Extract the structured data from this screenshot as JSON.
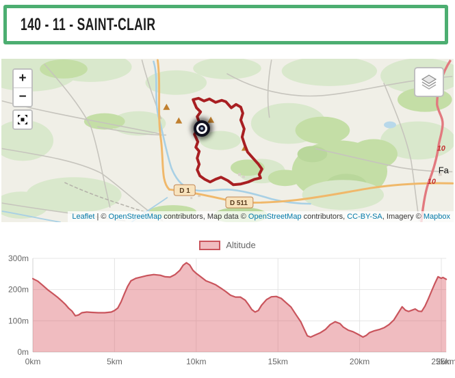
{
  "header": {
    "title": "140 - 11 - SAINT-CLAIR"
  },
  "map": {
    "zoom_in_label": "+",
    "zoom_out_label": "−",
    "road_labels": {
      "d1": "D 1",
      "d511": "D 511"
    },
    "shield_10": "10",
    "city_fragment": "Fa",
    "attribution": {
      "leaflet": "Leaflet",
      "sep": " | © ",
      "osm1": "OpenStreetMap",
      "mid1": " contributors, Map data © ",
      "osm2": "OpenStreetMap",
      "mid2": " contributors, ",
      "cc": "CC-BY-SA",
      "mid3": ", Imagery © ",
      "mapbox": "Mapbox"
    }
  },
  "chart_data": {
    "type": "area",
    "title": "",
    "legend_label": "Altitude",
    "grid": true,
    "legend_position": "top-center",
    "xlim": [
      0,
      25.3
    ],
    "ylim": [
      0,
      300
    ],
    "xmax": 25.3,
    "x_ticks": [
      {
        "v": 0,
        "label": "0km"
      },
      {
        "v": 5,
        "label": "5km"
      },
      {
        "v": 10,
        "label": "10km"
      },
      {
        "v": 15,
        "label": "15km"
      },
      {
        "v": 20,
        "label": "20km"
      },
      {
        "v": 25,
        "label": "25km"
      }
    ],
    "end_label": "25km",
    "y_ticks": [
      {
        "v": 0,
        "label": "0m"
      },
      {
        "v": 100,
        "label": "100m"
      },
      {
        "v": 200,
        "label": "200m"
      },
      {
        "v": 300,
        "label": "300m"
      }
    ],
    "colors": {
      "line": "#c9545c",
      "fill": "rgba(219,95,104,0.42)"
    },
    "series": [
      {
        "name": "Altitude",
        "x": [
          0,
          0.3,
          0.6,
          0.9,
          1.2,
          1.5,
          1.8,
          2.0,
          2.2,
          2.4,
          2.6,
          2.8,
          3.0,
          3.3,
          3.6,
          4.0,
          4.4,
          4.8,
          5.0,
          5.2,
          5.4,
          5.6,
          5.8,
          6.0,
          6.3,
          6.6,
          7.0,
          7.4,
          7.8,
          8.1,
          8.4,
          8.7,
          9.0,
          9.2,
          9.4,
          9.6,
          9.8,
          10.0,
          10.3,
          10.6,
          10.9,
          11.2,
          11.5,
          11.8,
          12.1,
          12.4,
          12.7,
          13.0,
          13.2,
          13.4,
          13.6,
          13.8,
          14.0,
          14.3,
          14.6,
          14.9,
          15.2,
          15.5,
          15.8,
          16.1,
          16.4,
          16.6,
          16.8,
          17.0,
          17.3,
          17.6,
          17.9,
          18.2,
          18.5,
          18.8,
          19.0,
          19.3,
          19.6,
          19.9,
          20.2,
          20.4,
          20.6,
          20.9,
          21.2,
          21.5,
          21.8,
          22.1,
          22.4,
          22.6,
          22.8,
          23.0,
          23.2,
          23.4,
          23.6,
          23.8,
          24.0,
          24.2,
          24.4,
          24.6,
          24.8,
          25.0,
          25.1,
          25.3
        ],
        "y": [
          235,
          227,
          214,
          200,
          188,
          176,
          162,
          152,
          140,
          131,
          116,
          119,
          126,
          128,
          127,
          126,
          126,
          128,
          133,
          141,
          161,
          186,
          210,
          228,
          236,
          240,
          245,
          248,
          246,
          241,
          240,
          248,
          262,
          278,
          286,
          279,
          262,
          252,
          240,
          228,
          222,
          215,
          205,
          194,
          182,
          176,
          176,
          166,
          152,
          136,
          128,
          133,
          150,
          168,
          177,
          178,
          172,
          158,
          144,
          120,
          97,
          74,
          52,
          48,
          55,
          62,
          72,
          88,
          97,
          91,
          80,
          70,
          65,
          57,
          48,
          53,
          62,
          68,
          72,
          78,
          88,
          103,
          128,
          145,
          134,
          130,
          134,
          138,
          131,
          130,
          147,
          170,
          195,
          219,
          241,
          236,
          239,
          233
        ]
      }
    ]
  }
}
